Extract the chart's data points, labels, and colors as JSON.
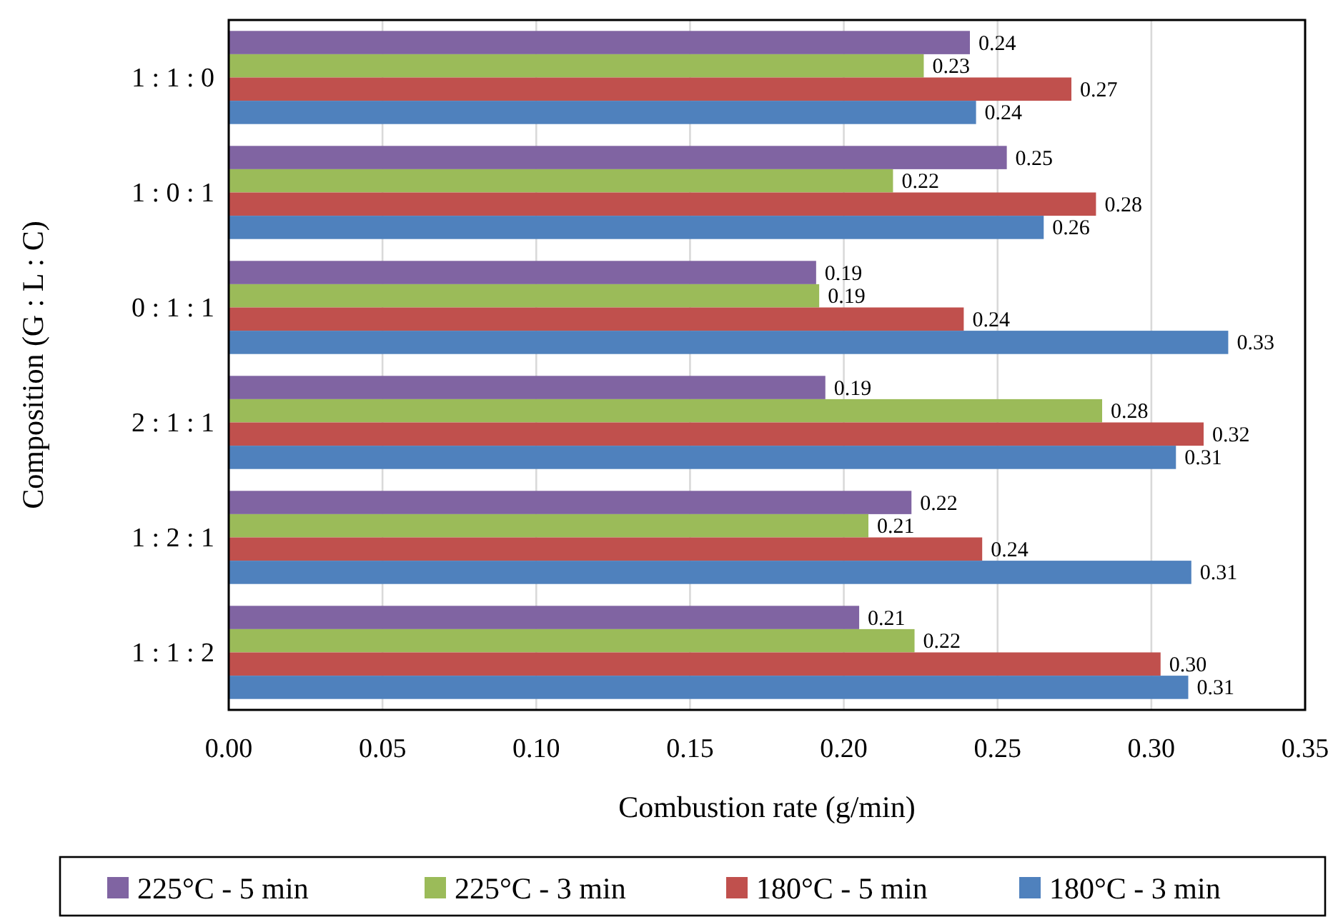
{
  "chart_data": {
    "type": "bar",
    "orientation": "horizontal",
    "xlabel": "Combustion rate (g/min)",
    "ylabel": "Composition (G : L : C)",
    "categories": [
      "1 : 1 : 0",
      "1 : 0 : 1",
      "0 : 1 : 1",
      "2 : 1 : 1",
      "1 : 2 : 1",
      "1 : 1 : 2"
    ],
    "series": [
      {
        "name": "225°C - 5 min",
        "color": "#8064a2",
        "values": [
          0.241,
          0.253,
          0.191,
          0.194,
          0.222,
          0.205
        ],
        "value_labels": [
          "0.24",
          "0.25",
          "0.19",
          "0.19",
          "0.22",
          "0.21"
        ]
      },
      {
        "name": "225°C - 3 min",
        "color": "#9bbb59",
        "values": [
          0.226,
          0.216,
          0.192,
          0.284,
          0.208,
          0.223
        ],
        "value_labels": [
          "0.23",
          "0.22",
          "0.19",
          "0.28",
          "0.21",
          "0.22"
        ]
      },
      {
        "name": "180°C - 5 min",
        "color": "#c0504d",
        "values": [
          0.274,
          0.282,
          0.239,
          0.317,
          0.245,
          0.303
        ],
        "value_labels": [
          "0.27",
          "0.28",
          "0.24",
          "0.32",
          "0.24",
          "0.30"
        ]
      },
      {
        "name": "180°C - 3 min",
        "color": "#4f81bd",
        "values": [
          0.243,
          0.265,
          0.325,
          0.308,
          0.313,
          0.312
        ],
        "value_labels": [
          "0.24",
          "0.26",
          "0.33",
          "0.31",
          "0.31",
          "0.31"
        ]
      }
    ],
    "xlim": [
      0,
      0.35
    ],
    "xticks": [
      {
        "value": 0,
        "label": "0.00"
      },
      {
        "value": 0.05,
        "label": "0.05"
      },
      {
        "value": 0.1,
        "label": "0.10"
      },
      {
        "value": 0.15,
        "label": "0.15"
      },
      {
        "value": 0.2,
        "label": "0.20"
      },
      {
        "value": 0.25,
        "label": "0.25"
      },
      {
        "value": 0.3,
        "label": "0.30"
      },
      {
        "value": 0.35,
        "label": "0.35"
      }
    ],
    "grid": "x",
    "legend": "bottom"
  }
}
